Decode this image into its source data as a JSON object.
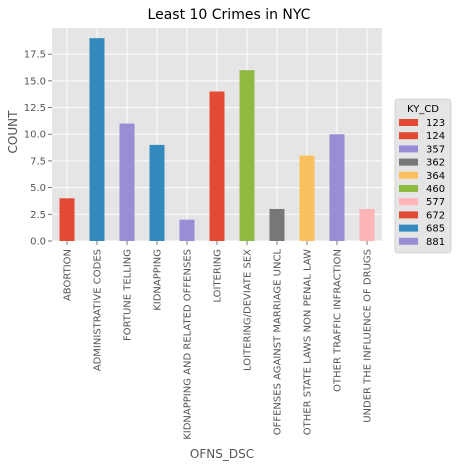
{
  "chart_data": {
    "type": "bar",
    "title": "Least 10 Crimes in NYC",
    "xlabel": "OFNS_DSC",
    "ylabel": "COUNT",
    "ylim": [
      0,
      19.95
    ],
    "yticks": [
      "0.0",
      "2.5",
      "5.0",
      "7.5",
      "10.0",
      "12.5",
      "15.0",
      "17.5"
    ],
    "grid": true,
    "legend_position": "right",
    "legend_title": "KY_CD",
    "categories": [
      "ABORTION",
      "ADMINISTRATIVE CODES",
      "FORTUNE TELLING",
      "KIDNAPPING",
      "KIDNAPPING AND RELATED OFFENSES",
      "LOITERING",
      "LOITERING/DEVIATE SEX",
      "OFFENSES AGAINST MARRIAGE UNCL",
      "OTHER STATE LAWS NON PENAL LAW",
      "OTHER TRAFFIC INFRACTION",
      "UNDER THE INFLUENCE OF DRUGS"
    ],
    "values": [
      4,
      19,
      11,
      9,
      2,
      14,
      16,
      3,
      8,
      10,
      3
    ],
    "bar_keys": [
      "123",
      "685",
      "357",
      "685",
      "881",
      "672",
      "460",
      "362",
      "364",
      "881",
      "577"
    ],
    "series": [
      {
        "name": "123",
        "color": "#e24a33"
      },
      {
        "name": "124",
        "color": "#e24a33"
      },
      {
        "name": "357",
        "color": "#988ed5"
      },
      {
        "name": "362",
        "color": "#777777"
      },
      {
        "name": "364",
        "color": "#fbc15e"
      },
      {
        "name": "460",
        "color": "#8eba42"
      },
      {
        "name": "577",
        "color": "#ffb5b8"
      },
      {
        "name": "672",
        "color": "#e24a33"
      },
      {
        "name": "685",
        "color": "#348abd"
      },
      {
        "name": "881",
        "color": "#988ed5"
      }
    ]
  }
}
